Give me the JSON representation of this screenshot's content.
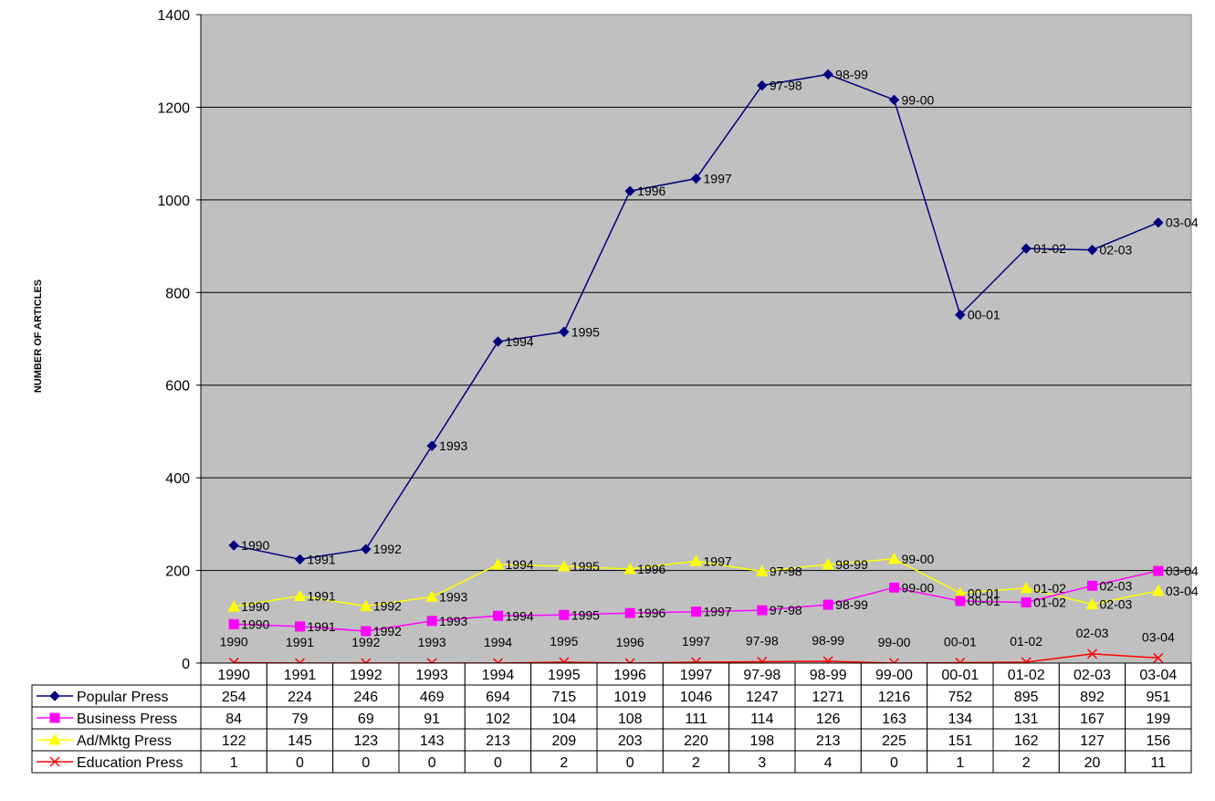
{
  "chart_data": {
    "type": "line",
    "ylabel": "NUMBER OF ARTICLES",
    "ylim": [
      0,
      1400
    ],
    "yticks": [
      0,
      200,
      400,
      600,
      800,
      1000,
      1200,
      1400
    ],
    "grid": true,
    "categories": [
      "1990",
      "1991",
      "1992",
      "1993",
      "1994",
      "1995",
      "1996",
      "1997",
      "97-98",
      "98-99",
      "99-00",
      "00-01",
      "01-02",
      "02-03",
      "03-04"
    ],
    "series": [
      {
        "name": "Popular Press",
        "color": "#000080",
        "marker": "diamond",
        "values": [
          254,
          224,
          246,
          469,
          694,
          715,
          1019,
          1046,
          1247,
          1271,
          1216,
          752,
          895,
          892,
          951
        ]
      },
      {
        "name": "Business Press",
        "color": "#FF00FF",
        "marker": "square",
        "values": [
          84,
          79,
          69,
          91,
          102,
          104,
          108,
          111,
          114,
          126,
          163,
          134,
          131,
          167,
          199
        ]
      },
      {
        "name": "Ad/Mktg Press",
        "color": "#FFFF00",
        "marker": "triangle",
        "values": [
          122,
          145,
          123,
          143,
          213,
          209,
          203,
          220,
          198,
          213,
          225,
          151,
          162,
          127,
          156
        ]
      },
      {
        "name": "Education Press",
        "color": "#FF0000",
        "marker": "x",
        "values": [
          1,
          0,
          0,
          0,
          0,
          2,
          0,
          2,
          3,
          4,
          0,
          1,
          2,
          20,
          11
        ]
      }
    ]
  }
}
